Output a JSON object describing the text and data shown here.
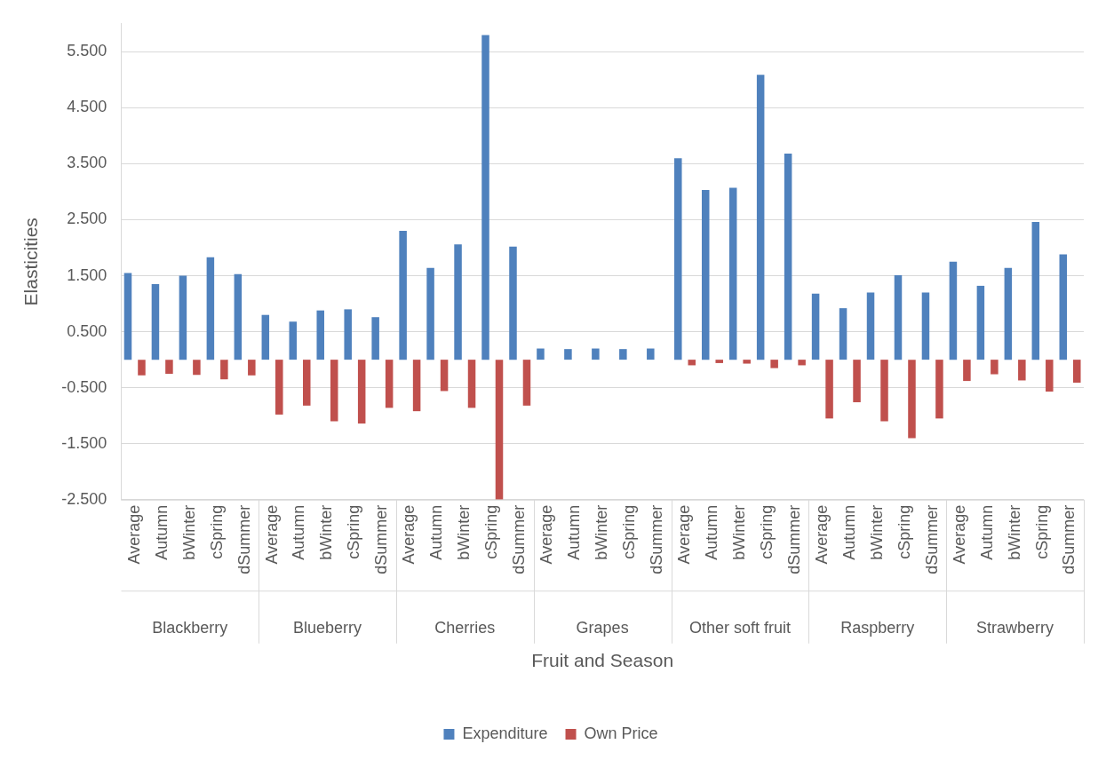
{
  "chart_data": {
    "type": "bar",
    "xlabel": "Fruit and Season",
    "ylabel": "Elasticities",
    "categories": [
      "Average",
      "Autumn",
      "bWinter",
      "cSpring",
      "dSummer",
      "Average",
      "Autumn",
      "bWinter",
      "cSpring",
      "dSummer",
      "Average",
      "Autumn",
      "bWinter",
      "cSpring",
      "dSummer",
      "Average",
      "Autumn",
      "bWinter",
      "cSpring",
      "dSummer",
      "Average",
      "Autumn",
      "bWinter",
      "cSpring",
      "dSummer",
      "Average",
      "Autumn",
      "bWinter",
      "cSpring",
      "dSummer",
      "Average",
      "Autumn",
      "bWinter",
      "cSpring",
      "dSummer"
    ],
    "annotations": [
      "Blackberry",
      "Blueberry",
      "Cherries",
      "Grapes",
      "Other soft fruit",
      "Raspberry",
      "Strawberry"
    ],
    "series": [
      {
        "name": "Expenditure",
        "color": "#4f81bd",
        "values": [
          1.55,
          1.35,
          1.5,
          1.83,
          1.53,
          0.8,
          0.68,
          0.88,
          0.9,
          0.76,
          2.3,
          1.64,
          2.06,
          5.8,
          2.02,
          0.2,
          0.19,
          0.2,
          0.19,
          0.2,
          3.6,
          3.03,
          3.07,
          5.09,
          3.68,
          1.18,
          0.92,
          1.2,
          1.51,
          1.2,
          1.75,
          1.32,
          1.64,
          2.46,
          1.88
        ]
      },
      {
        "name": "Own Price",
        "color": "#c0504d",
        "values": [
          -0.28,
          -0.25,
          -0.27,
          -0.35,
          -0.28,
          -0.98,
          -0.82,
          -1.1,
          -1.14,
          -0.86,
          -0.92,
          -0.56,
          -0.86,
          -2.5,
          -0.82,
          0,
          0,
          0,
          0,
          0,
          -0.1,
          -0.06,
          -0.07,
          -0.15,
          -0.1,
          -1.05,
          -0.76,
          -1.1,
          -1.4,
          -1.05,
          -0.38,
          -0.26,
          -0.37,
          -0.57,
          -0.41
        ]
      }
    ],
    "ylim": [
      -2.5,
      6.0
    ],
    "yticks": [
      {
        "value": -2.5,
        "label": "-2.500"
      },
      {
        "value": -1.5,
        "label": "-1.500"
      },
      {
        "value": -0.5,
        "label": "-0.500"
      },
      {
        "value": 0.5,
        "label": "0.500"
      },
      {
        "value": 1.5,
        "label": "1.500"
      },
      {
        "value": 2.5,
        "label": "2.500"
      },
      {
        "value": 3.5,
        "label": "3.500"
      },
      {
        "value": 4.5,
        "label": "4.500"
      },
      {
        "value": 5.5,
        "label": "5.500"
      }
    ],
    "grid": "y",
    "legend": "bottom"
  }
}
